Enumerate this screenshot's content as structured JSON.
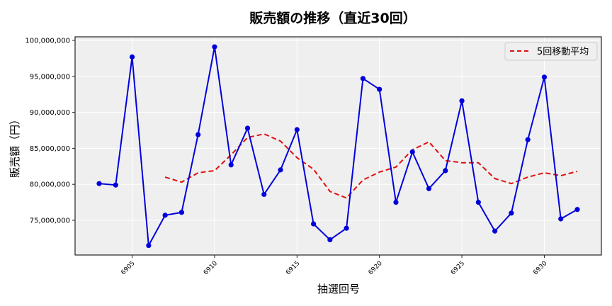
{
  "chart_data": {
    "type": "line",
    "title": "販売額の推移（直近30回）",
    "xlabel": "抽選回号",
    "ylabel": "販売額（円）",
    "x": [
      6903,
      6904,
      6905,
      6906,
      6907,
      6908,
      6909,
      6910,
      6911,
      6912,
      6913,
      6914,
      6915,
      6916,
      6917,
      6918,
      6919,
      6920,
      6921,
      6922,
      6923,
      6924,
      6925,
      6926,
      6927,
      6928,
      6929,
      6930,
      6931,
      6932
    ],
    "series": [
      {
        "name": "販売額",
        "style": "solid-marker",
        "color": "#0000dd",
        "values": [
          80100000,
          79900000,
          97700000,
          71500000,
          75700000,
          76100000,
          86900000,
          99100000,
          82700000,
          87800000,
          78600000,
          82000000,
          87600000,
          74500000,
          72300000,
          73900000,
          94700000,
          93200000,
          77500000,
          84500000,
          79400000,
          81900000,
          91600000,
          77500000,
          73500000,
          76000000,
          86200000,
          94900000,
          75200000,
          76500000
        ]
      },
      {
        "name": "5回移動平均",
        "style": "dashed",
        "color": "#e01010",
        "values": [
          null,
          null,
          null,
          null,
          81000000,
          80300000,
          81600000,
          81900000,
          84100000,
          86500000,
          87000000,
          86000000,
          83700000,
          82100000,
          79000000,
          78100000,
          80600000,
          81700000,
          82400000,
          84800000,
          85900000,
          83300000,
          83000000,
          83000000,
          80800000,
          80100000,
          81000000,
          81600000,
          81200000,
          81800000
        ]
      }
    ],
    "x_ticks": [
      6905,
      6910,
      6915,
      6920,
      6925,
      6930
    ],
    "x_tick_labels": [
      "6905",
      "6910",
      "6915",
      "6920",
      "6925",
      "6930"
    ],
    "y_ticks": [
      75000000,
      80000000,
      85000000,
      90000000,
      95000000,
      100000000
    ],
    "y_tick_labels": [
      "75,000,000",
      "80,000,000",
      "85,000,000",
      "90,000,000",
      "95,000,000",
      "100,000,000"
    ],
    "xlim": [
      6901.0,
      6933.5
    ],
    "ylim": [
      70100000,
      100500000
    ],
    "grid": true,
    "legend": {
      "position": "upper right",
      "entries": [
        "5回移動平均"
      ]
    },
    "background": "#efefef"
  }
}
